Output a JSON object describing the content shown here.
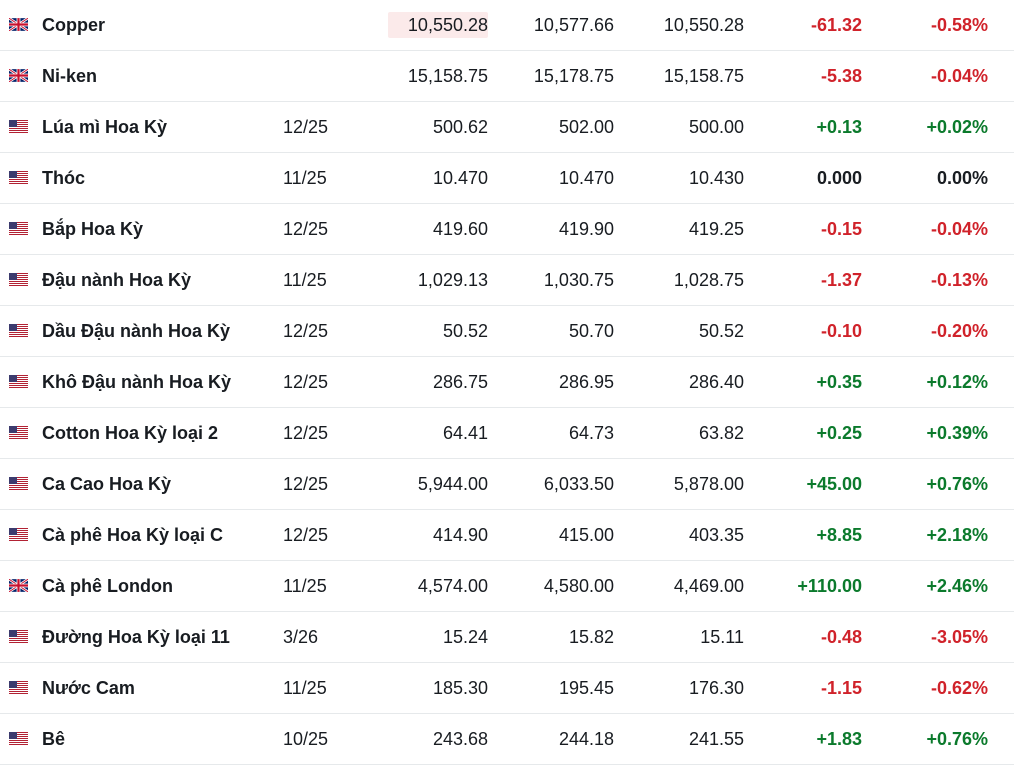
{
  "colors": {
    "negative": "#d0222a",
    "positive": "#0b7a2c",
    "neutral": "#181c21"
  },
  "rows": [
    {
      "flag": "uk-flag-icon",
      "name": "Copper",
      "month": "",
      "last": "10,550.28",
      "high": "10,577.66",
      "low": "10,550.28",
      "chg": "-61.32",
      "pct": "-0.58%",
      "dir": "neg",
      "highlight": true
    },
    {
      "flag": "uk-flag-icon",
      "name": "Ni-ken",
      "month": "",
      "last": "15,158.75",
      "high": "15,178.75",
      "low": "15,158.75",
      "chg": "-5.38",
      "pct": "-0.04%",
      "dir": "neg"
    },
    {
      "flag": "us-flag-icon",
      "name": "Lúa mì Hoa Kỳ",
      "month": "12/25",
      "last": "500.62",
      "high": "502.00",
      "low": "500.00",
      "chg": "+0.13",
      "pct": "+0.02%",
      "dir": "pos"
    },
    {
      "flag": "us-flag-icon",
      "name": "Thóc",
      "month": "11/25",
      "last": "10.470",
      "high": "10.470",
      "low": "10.430",
      "chg": "0.000",
      "pct": "0.00%",
      "dir": "neu"
    },
    {
      "flag": "us-flag-icon",
      "name": "Bắp Hoa Kỳ",
      "month": "12/25",
      "last": "419.60",
      "high": "419.90",
      "low": "419.25",
      "chg": "-0.15",
      "pct": "-0.04%",
      "dir": "neg"
    },
    {
      "flag": "us-flag-icon",
      "name": "Đậu nành Hoa Kỳ",
      "month": "11/25",
      "last": "1,029.13",
      "high": "1,030.75",
      "low": "1,028.75",
      "chg": "-1.37",
      "pct": "-0.13%",
      "dir": "neg"
    },
    {
      "flag": "us-flag-icon",
      "name": "Dầu Đậu nành Hoa Kỳ",
      "month": "12/25",
      "last": "50.52",
      "high": "50.70",
      "low": "50.52",
      "chg": "-0.10",
      "pct": "-0.20%",
      "dir": "neg"
    },
    {
      "flag": "us-flag-icon",
      "name": "Khô Đậu nành Hoa Kỳ",
      "month": "12/25",
      "last": "286.75",
      "high": "286.95",
      "low": "286.40",
      "chg": "+0.35",
      "pct": "+0.12%",
      "dir": "pos"
    },
    {
      "flag": "us-flag-icon",
      "name": "Cotton Hoa Kỳ loại 2",
      "month": "12/25",
      "last": "64.41",
      "high": "64.73",
      "low": "63.82",
      "chg": "+0.25",
      "pct": "+0.39%",
      "dir": "pos"
    },
    {
      "flag": "us-flag-icon",
      "name": "Ca Cao Hoa Kỳ",
      "month": "12/25",
      "last": "5,944.00",
      "high": "6,033.50",
      "low": "5,878.00",
      "chg": "+45.00",
      "pct": "+0.76%",
      "dir": "pos"
    },
    {
      "flag": "us-flag-icon",
      "name": "Cà phê Hoa Kỳ loại C",
      "month": "12/25",
      "last": "414.90",
      "high": "415.00",
      "low": "403.35",
      "chg": "+8.85",
      "pct": "+2.18%",
      "dir": "pos"
    },
    {
      "flag": "uk-flag-icon",
      "name": "Cà phê London",
      "month": "11/25",
      "last": "4,574.00",
      "high": "4,580.00",
      "low": "4,469.00",
      "chg": "+110.00",
      "pct": "+2.46%",
      "dir": "pos"
    },
    {
      "flag": "us-flag-icon",
      "name": "Đường Hoa Kỳ loại 11",
      "month": "3/26",
      "last": "15.24",
      "high": "15.82",
      "low": "15.11",
      "chg": "-0.48",
      "pct": "-3.05%",
      "dir": "neg"
    },
    {
      "flag": "us-flag-icon",
      "name": "Nước Cam",
      "month": "11/25",
      "last": "185.30",
      "high": "195.45",
      "low": "176.30",
      "chg": "-1.15",
      "pct": "-0.62%",
      "dir": "neg"
    },
    {
      "flag": "us-flag-icon",
      "name": "Bê",
      "month": "10/25",
      "last": "243.68",
      "high": "244.18",
      "low": "241.55",
      "chg": "+1.83",
      "pct": "+0.76%",
      "dir": "pos"
    }
  ]
}
